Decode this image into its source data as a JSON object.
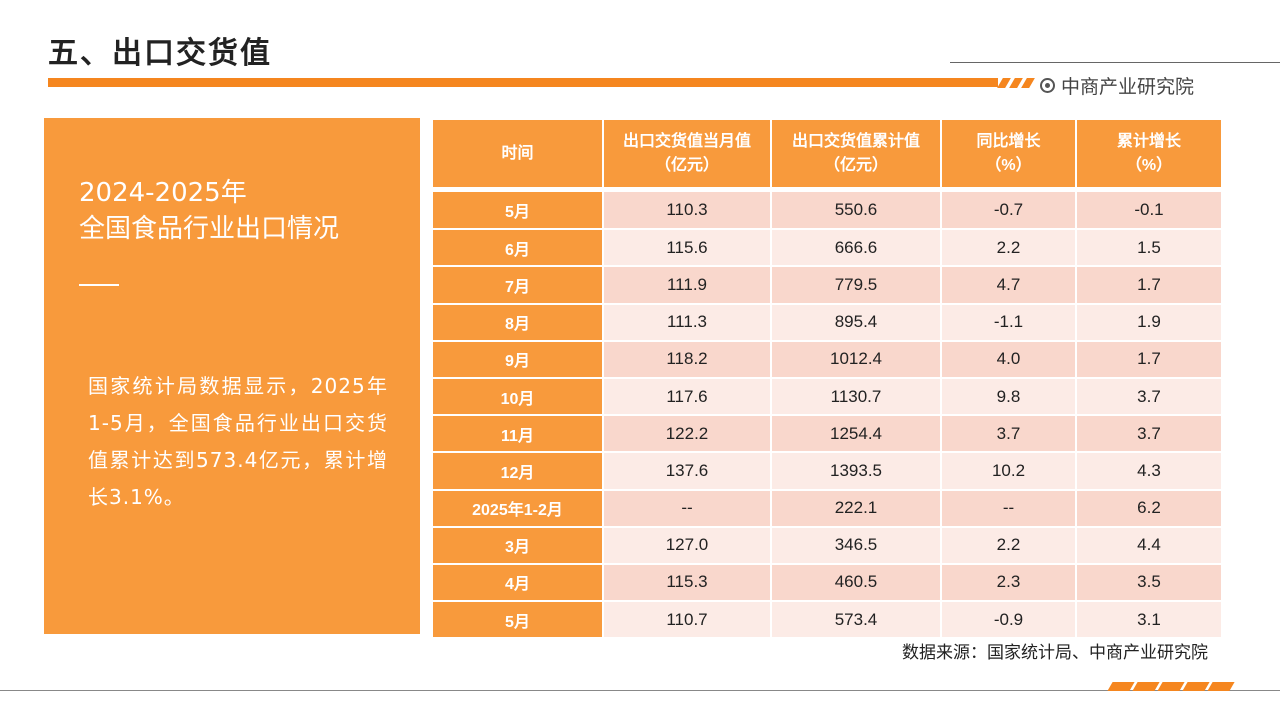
{
  "header": {
    "title": "五、出口交货值",
    "brand": "中商产业研究院",
    "accent_color": "#f5861f"
  },
  "panel": {
    "year": "2024-2025年",
    "subtitle": "全国食品行业出口情况",
    "body": "国家统计局数据显示，2025年1-5月，全国食品行业出口交货值累计达到573.4亿元，累计增长3.1%。"
  },
  "table": {
    "headers": [
      {
        "line1": "时间",
        "line2": ""
      },
      {
        "line1": "出口交货值当月值",
        "line2": "（亿元）"
      },
      {
        "line1": "出口交货值累计值",
        "line2": "（亿元）"
      },
      {
        "line1": "同比增长",
        "line2": "（%）"
      },
      {
        "line1": "累计增长",
        "line2": "（%）"
      }
    ],
    "rows": [
      {
        "time": "5月",
        "monthly": "110.3",
        "cumulative": "550.6",
        "yoy": "-0.7",
        "cum_growth": "-0.1"
      },
      {
        "time": "6月",
        "monthly": "115.6",
        "cumulative": "666.6",
        "yoy": "2.2",
        "cum_growth": "1.5"
      },
      {
        "time": "7月",
        "monthly": "111.9",
        "cumulative": "779.5",
        "yoy": "4.7",
        "cum_growth": "1.7"
      },
      {
        "time": "8月",
        "monthly": "111.3",
        "cumulative": "895.4",
        "yoy": "-1.1",
        "cum_growth": "1.9"
      },
      {
        "time": "9月",
        "monthly": "118.2",
        "cumulative": "1012.4",
        "yoy": "4.0",
        "cum_growth": "1.7"
      },
      {
        "time": "10月",
        "monthly": "117.6",
        "cumulative": "1130.7",
        "yoy": "9.8",
        "cum_growth": "3.7"
      },
      {
        "time": "11月",
        "monthly": "122.2",
        "cumulative": "1254.4",
        "yoy": "3.7",
        "cum_growth": "3.7"
      },
      {
        "time": "12月",
        "monthly": "137.6",
        "cumulative": "1393.5",
        "yoy": "10.2",
        "cum_growth": "4.3"
      },
      {
        "time": "2025年1-2月",
        "monthly": "--",
        "cumulative": "222.1",
        "yoy": "--",
        "cum_growth": "6.2"
      },
      {
        "time": "3月",
        "monthly": "127.0",
        "cumulative": "346.5",
        "yoy": "2.2",
        "cum_growth": "4.4"
      },
      {
        "time": "4月",
        "monthly": "115.3",
        "cumulative": "460.5",
        "yoy": "2.3",
        "cum_growth": "3.5"
      },
      {
        "time": "5月",
        "monthly": "110.7",
        "cumulative": "573.4",
        "yoy": "-0.9",
        "cum_growth": "3.1"
      }
    ]
  },
  "source": "数据来源：国家统计局、中商产业研究院"
}
